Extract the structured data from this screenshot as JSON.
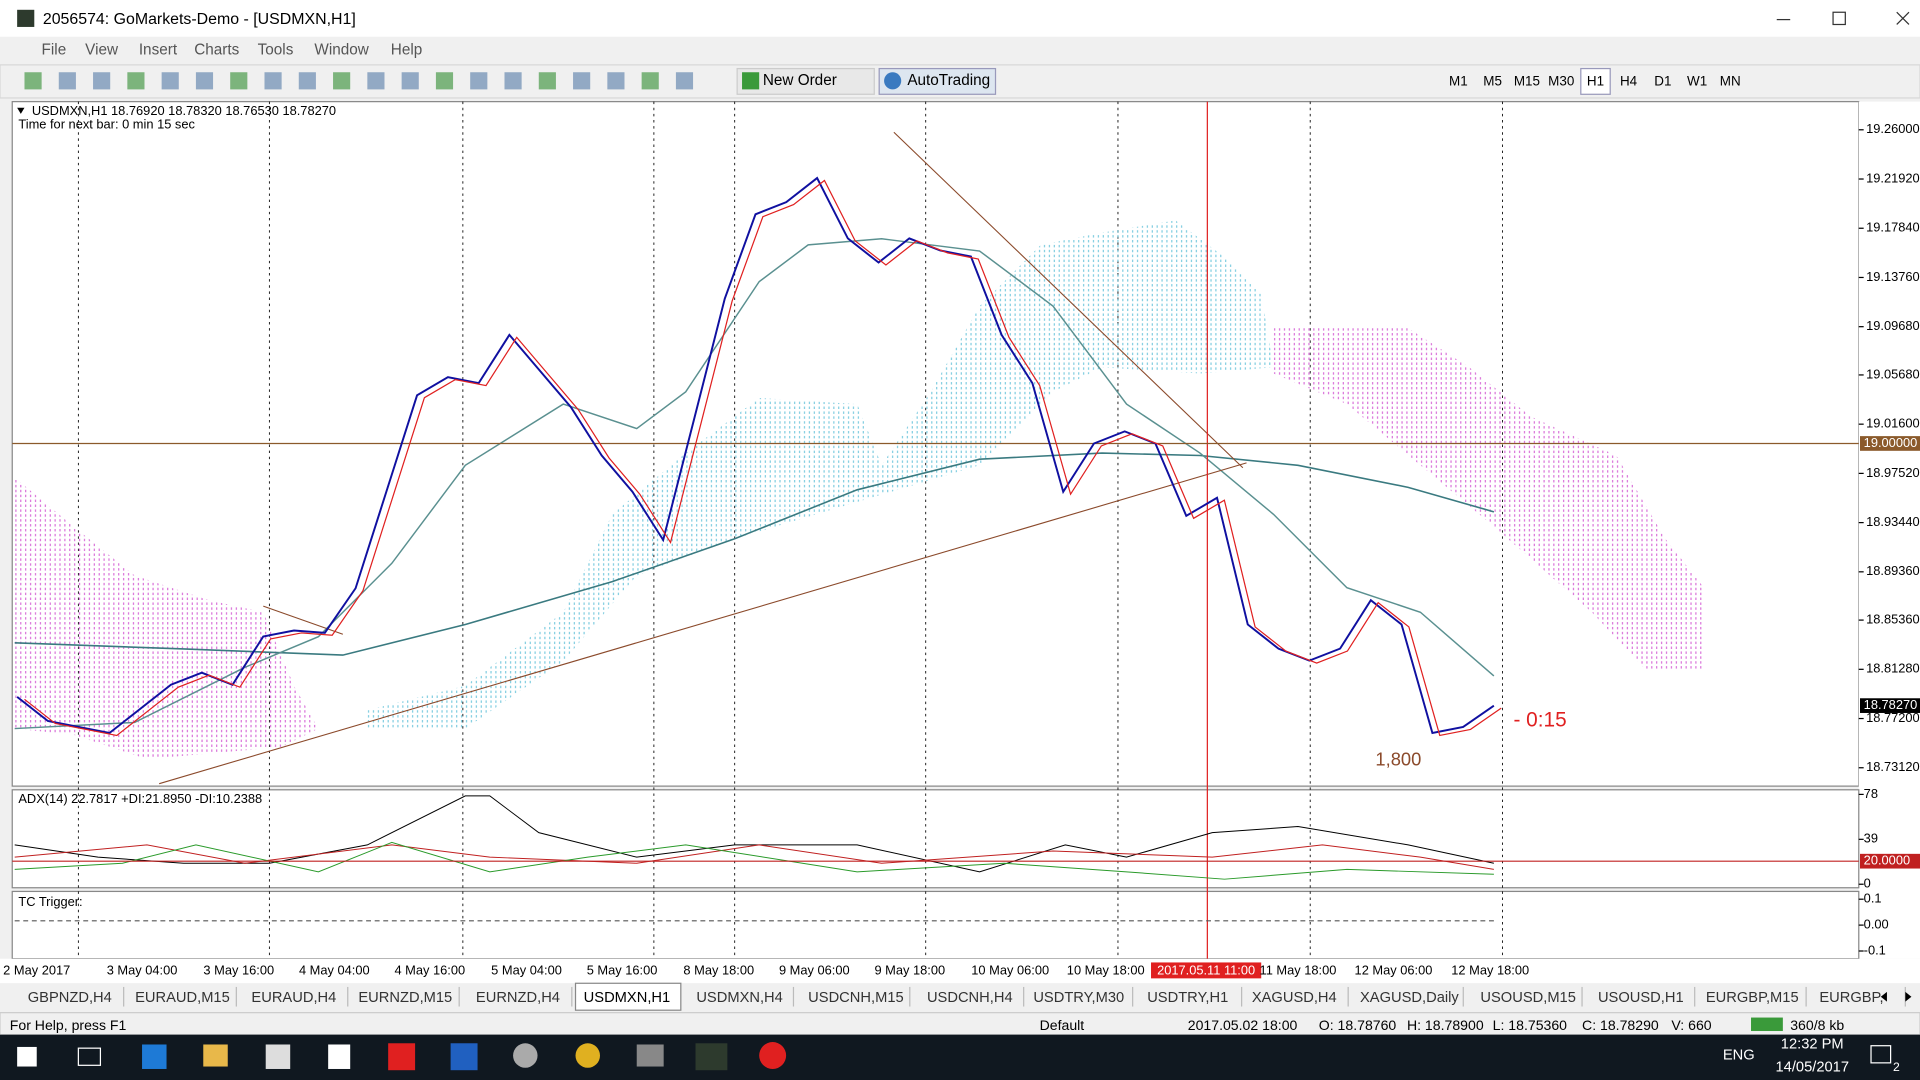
{
  "window": {
    "title": "2056574: GoMarkets-Demo - [USDMXN,H1]"
  },
  "menu": [
    "File",
    "View",
    "Insert",
    "Charts",
    "Tools",
    "Window",
    "Help"
  ],
  "toolbar": {
    "new_order": "New Order",
    "autotrading": "AutoTrading",
    "timeframes": [
      "M1",
      "M5",
      "M15",
      "M30",
      "H1",
      "H4",
      "D1",
      "W1",
      "MN"
    ]
  },
  "chart": {
    "header": "USDMXN,H1  18.76920 18.78320 18.76530 18.78270",
    "next_bar": "Time for next bar: 0 min 15 sec",
    "ylim": [
      18.7312,
      19.26
    ],
    "yticks": [
      {
        "value": 19.26,
        "label": "19.26000"
      },
      {
        "value": 19.2192,
        "label": "19.21920"
      },
      {
        "value": 19.1784,
        "label": "19.17840"
      },
      {
        "value": 19.1376,
        "label": "19.13760"
      },
      {
        "value": 19.0968,
        "label": "19.09680"
      },
      {
        "value": 19.0568,
        "label": "19.05680"
      },
      {
        "value": 19.016,
        "label": "19.01600"
      },
      {
        "value": 18.9752,
        "label": "18.97520"
      },
      {
        "value": 18.9344,
        "label": "18.93440"
      },
      {
        "value": 18.8936,
        "label": "18.89360"
      },
      {
        "value": 18.8536,
        "label": "18.85360"
      },
      {
        "value": 18.8128,
        "label": "18.81280"
      },
      {
        "value": 18.772,
        "label": "18.77200"
      },
      {
        "value": 18.7312,
        "label": "18.73120"
      }
    ],
    "level_label": {
      "value": 19.0,
      "label": "19.00000"
    },
    "bid_label": {
      "value": 18.7827,
      "label": "18.78270"
    },
    "price_line": [
      18.79,
      18.77,
      18.765,
      18.76,
      18.78,
      18.8,
      18.81,
      18.8,
      18.84,
      18.845,
      18.843,
      18.88,
      18.96,
      19.04,
      19.055,
      19.05,
      19.09,
      19.06,
      19.03,
      18.99,
      18.96,
      18.92,
      19.02,
      19.12,
      19.19,
      19.2,
      19.22,
      19.17,
      19.15,
      19.17,
      19.16,
      19.155,
      19.09,
      19.05,
      18.96,
      19.0,
      19.01,
      19.0,
      18.94,
      18.955,
      18.85,
      18.83,
      18.82,
      18.83,
      18.87,
      18.85,
      18.76,
      18.765,
      18.7827
    ],
    "annotation": "1,800",
    "timer": "- 0:15"
  },
  "adx": {
    "header": "ADX(14) 22.7817 +DI:21.8950 -DI:10.2388",
    "ylim": [
      -2,
      82
    ],
    "yticks": [
      78,
      39,
      {
        "value": 20,
        "label": "20.0000"
      },
      0
    ]
  },
  "tc": {
    "header": "TC Trigger:",
    "ylim": [
      -0.13,
      0.13
    ],
    "yticks": [
      0.1,
      {
        "value": 0,
        "label": "0.00"
      },
      -0.1
    ]
  },
  "time_axis": [
    "2 May 2017",
    "3 May 04:00",
    "3 May 16:00",
    "4 May 04:00",
    "4 May 16:00",
    "5 May 04:00",
    "5 May 16:00",
    "8 May 18:00",
    "9 May 06:00",
    "9 May 18:00",
    "10 May 06:00",
    "10 May 18:00",
    "2017.05.11 11:00",
    "11 May 18:00",
    "12 May 06:00",
    "12 May 18:00"
  ],
  "tabs": [
    "GBPNZD,H4",
    "EURAUD,M15",
    "EURAUD,H4",
    "EURNZD,M15",
    "EURNZD,H4",
    "USDMXN,H1",
    "USDMXN,H4",
    "USDCNH,M15",
    "USDCNH,H4",
    "USDTRY,M30",
    "USDTRY,H1",
    "XAGUSD,H4",
    "XAGUSD,Daily",
    "USOUSD,M15",
    "USOUSD,H1",
    "EURGBP,M15",
    "EURGBP,"
  ],
  "status": {
    "help": "For Help, press F1",
    "profile": "Default",
    "time": "2017.05.02 18:00",
    "open": "O: 18.78760",
    "high": "H: 18.78900",
    "low": "L: 18.75360",
    "close": "C: 18.78290",
    "volume": "V: 660",
    "traffic": "360/8 kb"
  },
  "taskbar": {
    "language": "ENG",
    "time": "12:32 PM",
    "date": "14/05/2017",
    "notifications": "2"
  }
}
